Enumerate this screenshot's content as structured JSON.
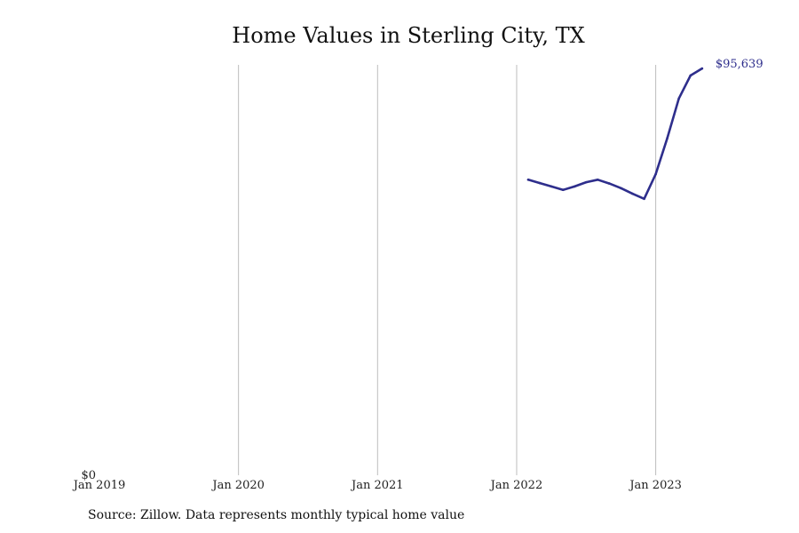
{
  "chart_data": {
    "type": "line",
    "title": "Home Values in Sterling City, TX",
    "source": "Source: Zillow. Data represents monthly typical home value",
    "x_ticks": [
      "Jan 2019",
      "Jan 2020",
      "Jan 2021",
      "Jan 2022",
      "Jan 2023"
    ],
    "y_ticks": [
      "$0"
    ],
    "xlim": [
      "2019-01",
      "2023-08"
    ],
    "ylim": [
      0,
      96500
    ],
    "grid": "vertical",
    "series": [
      {
        "color": "#2e2e8c",
        "end_label": "$95,639",
        "points": [
          {
            "x": "2022-02",
            "y": 69500
          },
          {
            "x": "2022-03",
            "y": 68700
          },
          {
            "x": "2022-04",
            "y": 67900
          },
          {
            "x": "2022-05",
            "y": 67100
          },
          {
            "x": "2022-06",
            "y": 67900
          },
          {
            "x": "2022-07",
            "y": 68900
          },
          {
            "x": "2022-08",
            "y": 69500
          },
          {
            "x": "2022-09",
            "y": 68600
          },
          {
            "x": "2022-10",
            "y": 67500
          },
          {
            "x": "2022-11",
            "y": 66200
          },
          {
            "x": "2022-12",
            "y": 65000
          },
          {
            "x": "2023-01",
            "y": 70800
          },
          {
            "x": "2023-02",
            "y": 79300
          },
          {
            "x": "2023-03",
            "y": 88600
          },
          {
            "x": "2023-04",
            "y": 94000
          },
          {
            "x": "2023-05",
            "y": 95639
          }
        ]
      }
    ]
  }
}
